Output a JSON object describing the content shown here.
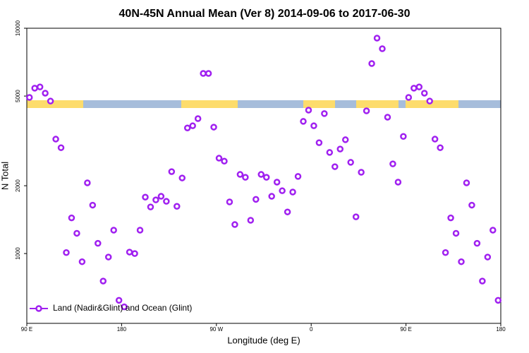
{
  "chart_data": {
    "type": "scatter",
    "title": "40N-45N Annual Mean (Ver 8)   2014-09-06 to 2017-06-30",
    "x_label": "Longitude (deg E)",
    "y_label": "N Total",
    "log_y": true,
    "xlim": [
      90,
      540
    ],
    "ylim": [
      490,
      10000
    ],
    "xticks": [
      {
        "value": 90,
        "label": "90 E"
      },
      {
        "value": 180,
        "label": "180"
      },
      {
        "value": 270,
        "label": "90 W"
      },
      {
        "value": 360,
        "label": "0"
      },
      {
        "value": 450,
        "label": "90 E"
      },
      {
        "value": 540,
        "label": "180"
      }
    ],
    "yticks": [
      1000,
      2000,
      5000,
      10000
    ],
    "legend_position": "lower left",
    "series": [
      {
        "name": "Land (Nadir&Glint) and Ocean (Glint)",
        "color": "#a020f0",
        "x": [
          92.5,
          97.5,
          102.5,
          107.5,
          112.5,
          117.5,
          122.5,
          127.5,
          132.5,
          137.5,
          142.5,
          147.5,
          152.5,
          157.5,
          162.5,
          167.5,
          172.5,
          177.5,
          182.5,
          187.5,
          192.5,
          197.5,
          202.5,
          207.5,
          212.5,
          217.5,
          222.5,
          227.5,
          232.5,
          237.5,
          242.5,
          247.5,
          252.5,
          257.5,
          262.5,
          267.5,
          272.5,
          277.5,
          282.5,
          287.5,
          292.5,
          297.5,
          302.5,
          307.5,
          312.5,
          317.5,
          322.5,
          327.5,
          332.5,
          337.5,
          342.5,
          347.5,
          352.5,
          357.5,
          362.5,
          367.5,
          372.5,
          377.5,
          382.5,
          387.5,
          392.5,
          397.5,
          402.5,
          407.5,
          412.5,
          417.5,
          422.5,
          427.5,
          432.5,
          437.5,
          442.5,
          447.5,
          452.5,
          457.5,
          462.5,
          467.5,
          472.5,
          477.5,
          482.5,
          487.5,
          492.5,
          497.5,
          502.5,
          507.5,
          512.5,
          517.5,
          522.5,
          527.5,
          532.5,
          537.5
        ],
        "values": [
          4930,
          5420,
          5490,
          5150,
          4750,
          3220,
          2950,
          1010,
          1440,
          1230,
          920,
          2060,
          1640,
          1110,
          755,
          965,
          1270,
          620,
          580,
          1015,
          1000,
          1270,
          1780,
          1610,
          1730,
          1795,
          1705,
          2310,
          1620,
          2165,
          3610,
          3690,
          3970,
          6300,
          6300,
          3640,
          2650,
          2570,
          1695,
          1345,
          2245,
          2180,
          1405,
          1740,
          2245,
          2180,
          1795,
          2075,
          1900,
          1530,
          1875,
          2200,
          3860,
          4330,
          3690,
          3105,
          4180,
          2810,
          2430,
          2910,
          3200,
          2540,
          1455,
          2295,
          4300,
          6970,
          9040,
          8110,
          4030,
          2500,
          2075,
          3310,
          4930,
          5420,
          5490,
          5150,
          4750,
          3220,
          2950,
          1010,
          1440,
          1230,
          920,
          2060,
          1640,
          1110,
          755,
          965,
          1270,
          620
        ]
      }
    ]
  }
}
